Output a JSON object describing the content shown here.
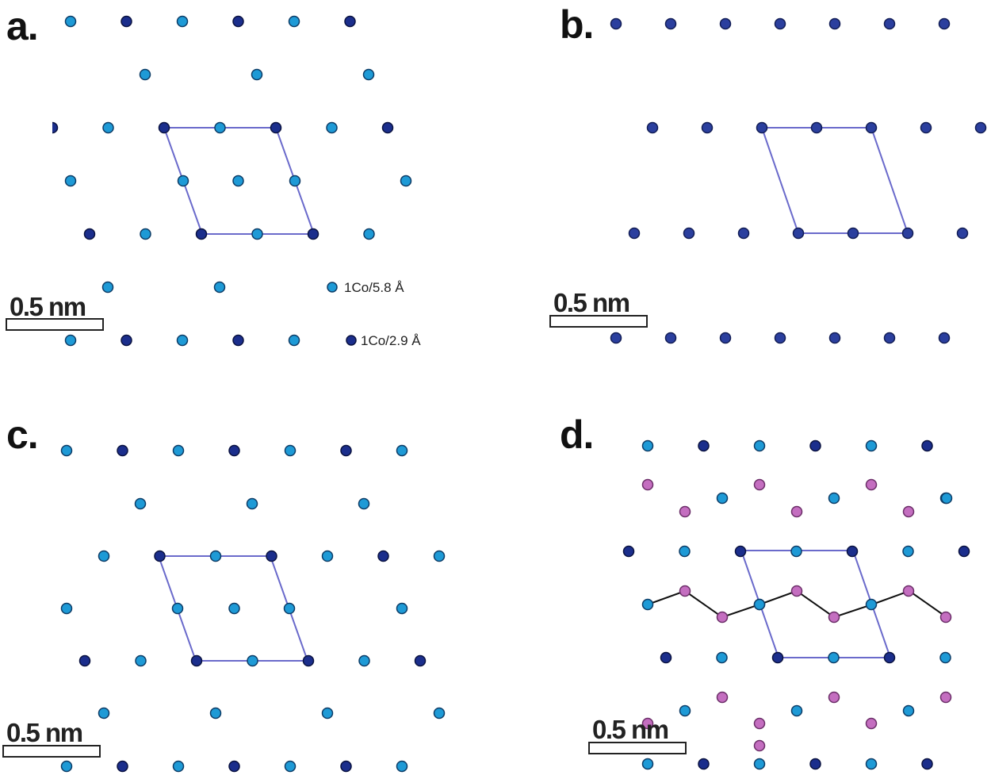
{
  "panels": [
    {
      "id": "a",
      "label": "a."
    },
    {
      "id": "b",
      "label": "b."
    },
    {
      "id": "c",
      "label": "c."
    },
    {
      "id": "d",
      "label": "d."
    }
  ],
  "scale_bar": {
    "label": "0.5 nm"
  },
  "legend": [
    {
      "label": "1Co/5.8 Å",
      "color": "#1e9ad6"
    },
    {
      "label": "1Co/2.9 Å",
      "color": "#1b2e8c"
    }
  ],
  "colors": {
    "co_light": "#1e9ad6",
    "co_dark": "#1b2e8c",
    "co_medium": "#2b3f9e",
    "pink": "#c46ec0",
    "cell": "#6a6acb",
    "zigzag": "#111111"
  }
}
